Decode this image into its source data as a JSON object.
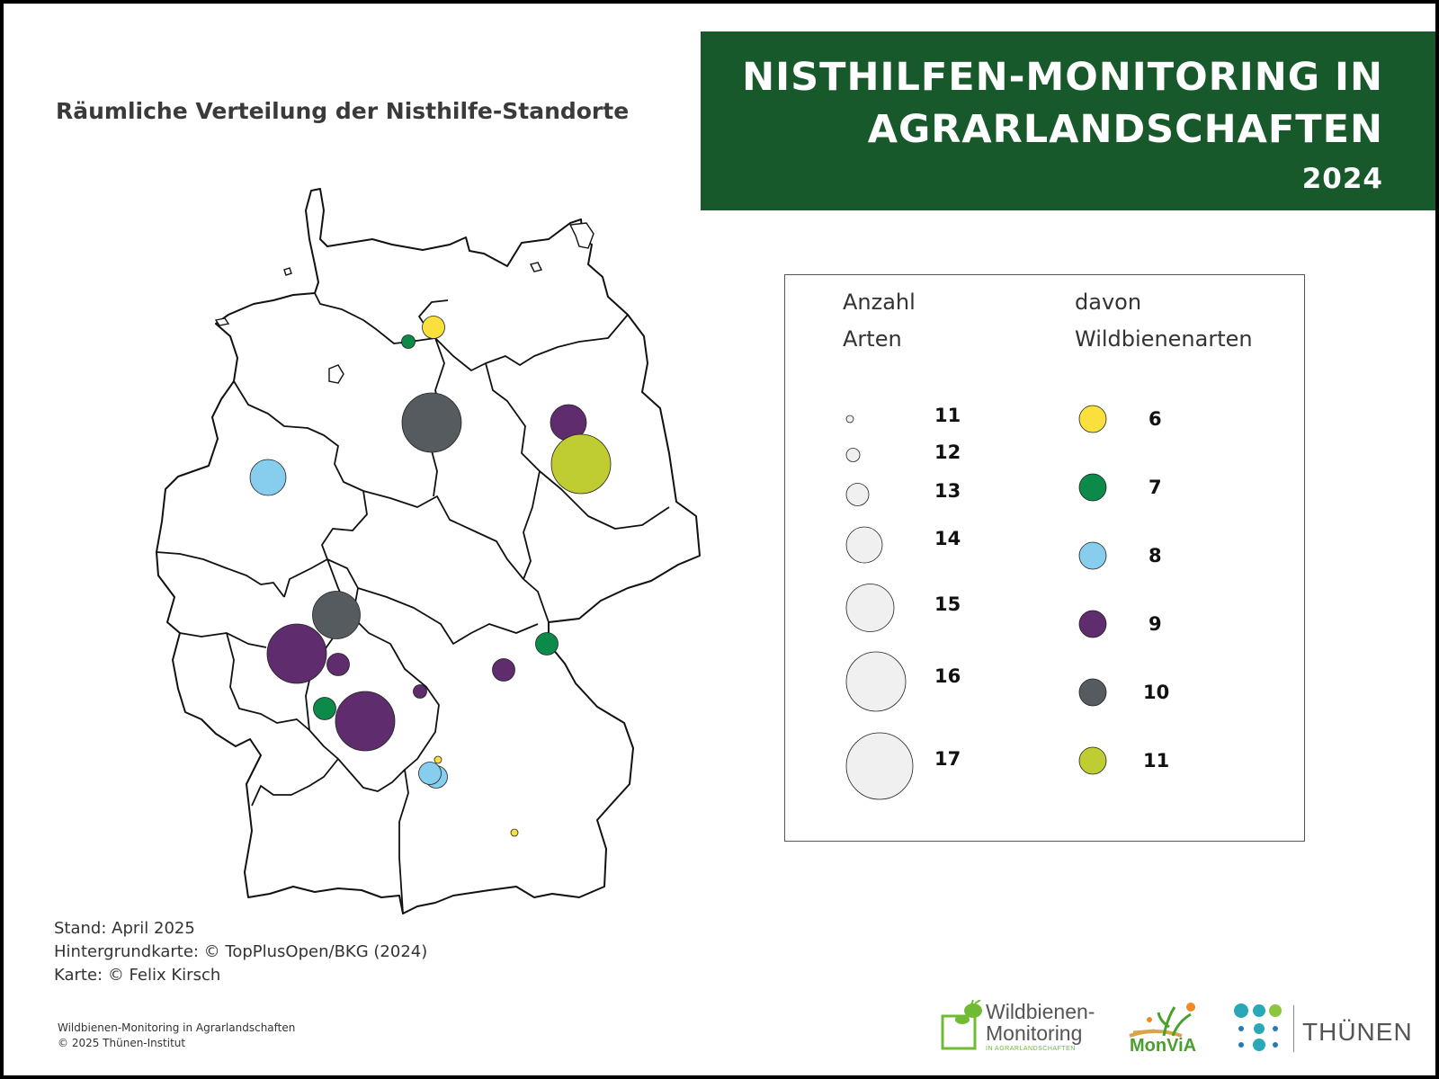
{
  "title": {
    "line1": "NISTHILFEN-MONITORING IN",
    "line2": "AGRARLANDSCHAFTEN",
    "year": "2024"
  },
  "subtitle": "Räumliche Verteilung der Nisthilfe-Standorte",
  "legend": {
    "size_header_line1": "Anzahl",
    "size_header_line2": "Arten",
    "color_header_line1": "davon",
    "color_header_line2": "Wildbienenarten",
    "sizes": [
      "11",
      "12",
      "13",
      "14",
      "15",
      "16",
      "17"
    ],
    "colors": [
      {
        "label": "6",
        "color": "#f9e03c"
      },
      {
        "label": "7",
        "color": "#0b8a4a"
      },
      {
        "label": "8",
        "color": "#86cdee"
      },
      {
        "label": "9",
        "color": "#5f2c6e"
      },
      {
        "label": "10",
        "color": "#555b5e"
      },
      {
        "label": "11",
        "color": "#bfcd33"
      }
    ]
  },
  "credits": {
    "line1": "Stand: April 2025",
    "line2": "Hintergrundkarte: © TopPlusOpen/BKG (2024)",
    "line3": "Karte: © Felix Kirsch"
  },
  "footer": {
    "line1": "Wildbienen-Monitoring in Agrarlandschaften",
    "line2": "© 2025 Thünen-Institut"
  },
  "logos": {
    "wildbienen_line1": "Wildbienen-",
    "wildbienen_line2": "Monitoring",
    "wildbienen_line3": "IN AGRARLANDSCHAFTEN",
    "monvia": "MonViA",
    "thuenen": "THÜNEN"
  },
  "map_sites": [
    {
      "species": 13,
      "wild_bees": 6
    },
    {
      "species": 12,
      "wild_bees": 7
    },
    {
      "species": 16,
      "wild_bees": 10
    },
    {
      "species": 14,
      "wild_bees": 9
    },
    {
      "species": 16,
      "wild_bees": 11
    },
    {
      "species": 14,
      "wild_bees": 8
    },
    {
      "species": 15,
      "wild_bees": 10
    },
    {
      "species": 16,
      "wild_bees": 9
    },
    {
      "species": 13,
      "wild_bees": 9
    },
    {
      "species": 13,
      "wild_bees": 7
    },
    {
      "species": 13,
      "wild_bees": 9
    },
    {
      "species": 12,
      "wild_bees": 9
    },
    {
      "species": 13,
      "wild_bees": 7
    },
    {
      "species": 16,
      "wild_bees": 9
    },
    {
      "species": 13,
      "wild_bees": 8
    },
    {
      "species": 13,
      "wild_bees": 8
    },
    {
      "species": 11,
      "wild_bees": 6
    },
    {
      "species": 11,
      "wild_bees": 6
    }
  ]
}
